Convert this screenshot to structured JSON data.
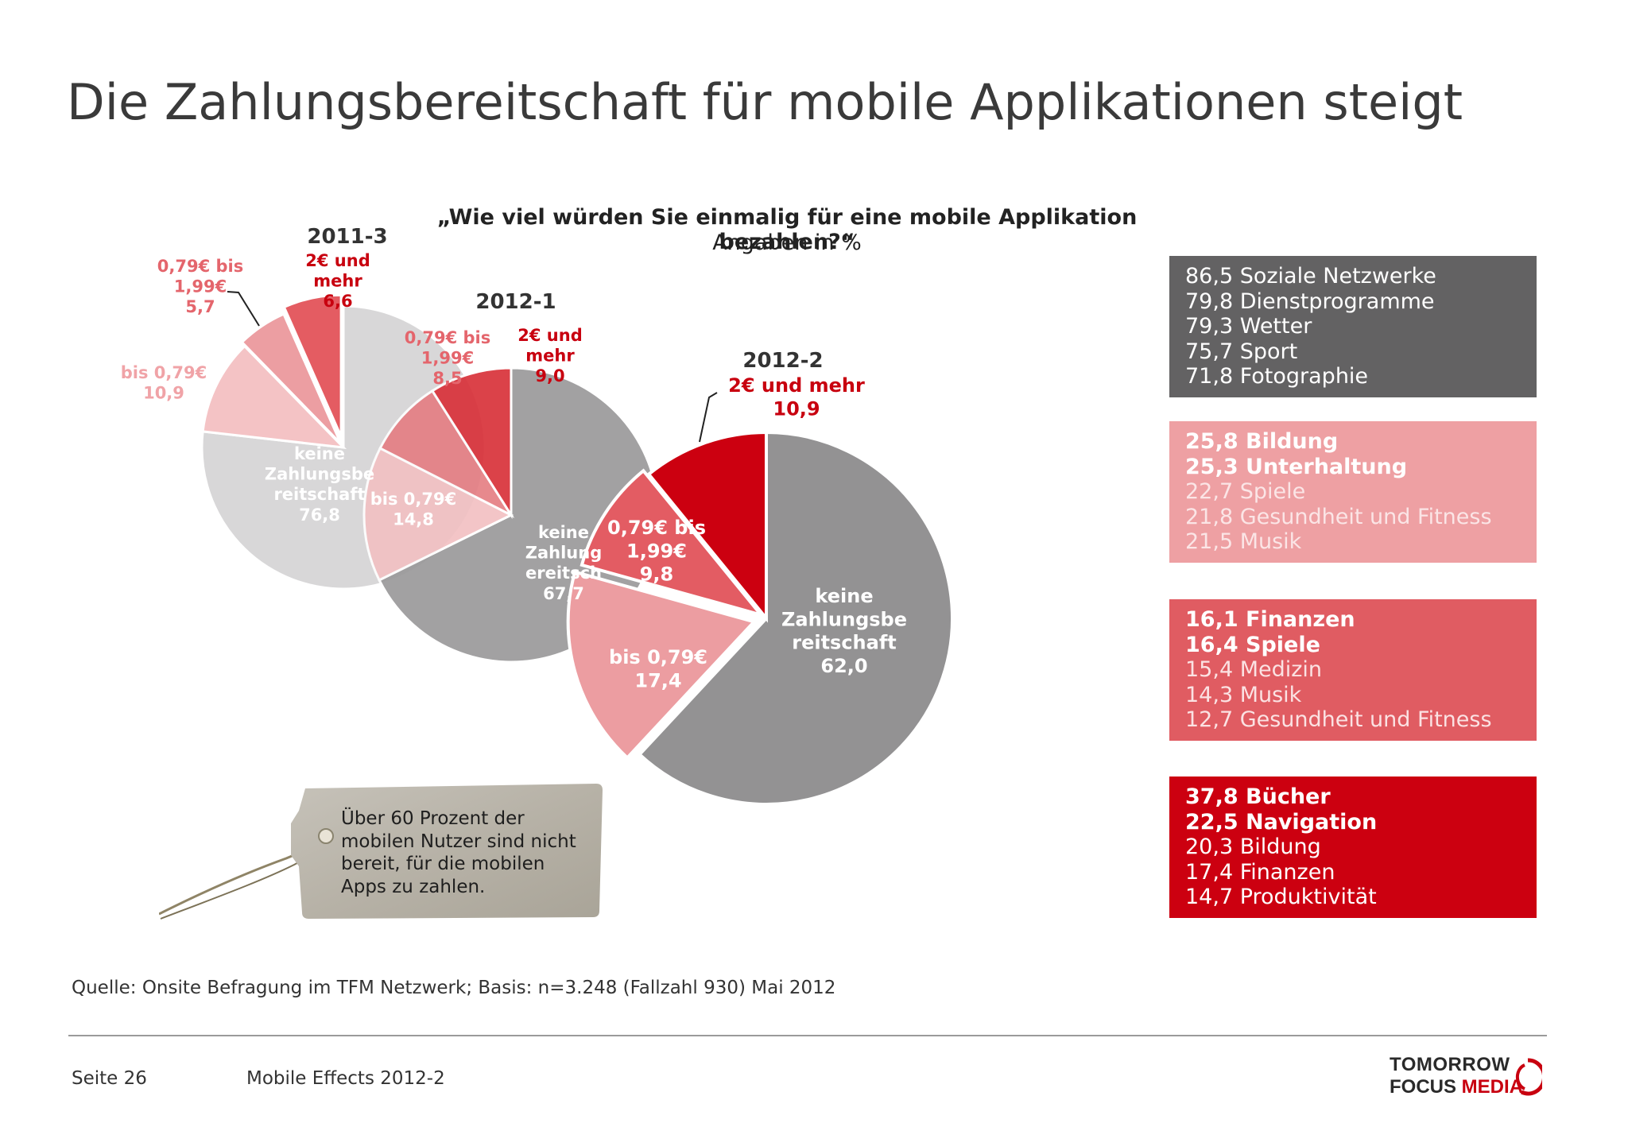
{
  "title": "Die Zahlungsbereitschaft für mobile Applikationen steigt",
  "question": "„Wie viel würden Sie einmalig für eine mobile Applikation bezahlen?“",
  "unit_label": "Angaben in %",
  "chart_data": [
    {
      "type": "pie",
      "title": "2011-3",
      "slices": [
        {
          "label": "keine Zahlungsbereitschaft",
          "value": 76.8,
          "display": "76,8",
          "color": "#d8d7d8"
        },
        {
          "label": "bis 0,79€",
          "value": 10.9,
          "display": "10,9",
          "color": "#f4c3c5"
        },
        {
          "label": "0,79€ bis 1,99€",
          "value": 5.7,
          "display": "5,7",
          "color": "#ec9ea2"
        },
        {
          "label": "2€ und mehr",
          "value": 6.6,
          "display": "6,6",
          "color": "#e45c62"
        }
      ]
    },
    {
      "type": "pie",
      "title": "2012-1",
      "slices": [
        {
          "label": "keine Zahlungsbereitschaft",
          "value": 67.7,
          "display": "67,7",
          "color": "#9b9a9b"
        },
        {
          "label": "bis 0,79€",
          "value": 14.8,
          "display": "14,8",
          "color": "#f2c1c3"
        },
        {
          "label": "0,79€ bis 1,99€",
          "value": 8.5,
          "display": "8,5",
          "color": "#e57f84"
        },
        {
          "label": "2€ und mehr",
          "value": 9.0,
          "display": "9,0",
          "color": "#d9323a"
        }
      ]
    },
    {
      "type": "pie",
      "title": "2012-2",
      "slices": [
        {
          "label": "keine Zahlungsbereitschaft",
          "value": 62.0,
          "display": "62,0",
          "color": "#939293"
        },
        {
          "label": "bis 0,79€",
          "value": 17.4,
          "display": "17,4",
          "color": "#ec9da1"
        },
        {
          "label": "0,79€ bis 1,99€",
          "value": 9.8,
          "display": "9,8",
          "color": "#e35c63"
        },
        {
          "label": "2€ und mehr",
          "value": 10.9,
          "display": "10,9",
          "color": "#cc0010"
        }
      ]
    }
  ],
  "category_boxes": [
    {
      "color": "#636263",
      "items": [
        {
          "text": "86,5 Soziale Netzwerke",
          "bold": false
        },
        {
          "text": "79,8 Dienstprogramme",
          "bold": false
        },
        {
          "text": "79,3 Wetter",
          "bold": false
        },
        {
          "text": "75,7 Sport",
          "bold": false
        },
        {
          "text": "71,8 Fotographie",
          "bold": false
        }
      ]
    },
    {
      "color": "#eea0a3",
      "items": [
        {
          "text": "25,8 Bildung",
          "bold": true
        },
        {
          "text": "25,3 Unterhaltung",
          "bold": true
        },
        {
          "text": "22,7 Spiele",
          "bold": false
        },
        {
          "text": "21,8 Gesundheit und Fitness",
          "bold": false
        },
        {
          "text": "21,5 Musik",
          "bold": false
        }
      ]
    },
    {
      "color": "#e05c62",
      "items": [
        {
          "text": "16,1 Finanzen",
          "bold": true
        },
        {
          "text": "16,4 Spiele",
          "bold": true
        },
        {
          "text": "15,4 Medizin",
          "bold": false
        },
        {
          "text": "14,3 Musik",
          "bold": false
        },
        {
          "text": "12,7 Gesundheit und Fitness",
          "bold": false
        }
      ]
    },
    {
      "color": "#cc0010",
      "items": [
        {
          "text": "37,8 Bücher",
          "bold": true
        },
        {
          "text": "22,5 Navigation",
          "bold": true
        },
        {
          "text": "20,3 Bildung",
          "bold": false
        },
        {
          "text": "17,4 Finanzen",
          "bold": false
        },
        {
          "text": "14,7 Produktivität",
          "bold": false
        }
      ]
    }
  ],
  "tag_text": "Über 60 Prozent der mobilen Nutzer sind nicht bereit, für die mobilen Apps zu zahlen.",
  "source": "Quelle: Onsite Befragung im TFM Netzwerk; Basis: n=3.248 (Fallzahl 930) Mai 2012",
  "footer": {
    "page": "Seite 26",
    "document": "Mobile Effects 2012-2"
  },
  "logo": {
    "line1": "TOMORROW",
    "line2a": "FOCUS ",
    "line2b": "MEDIA"
  }
}
